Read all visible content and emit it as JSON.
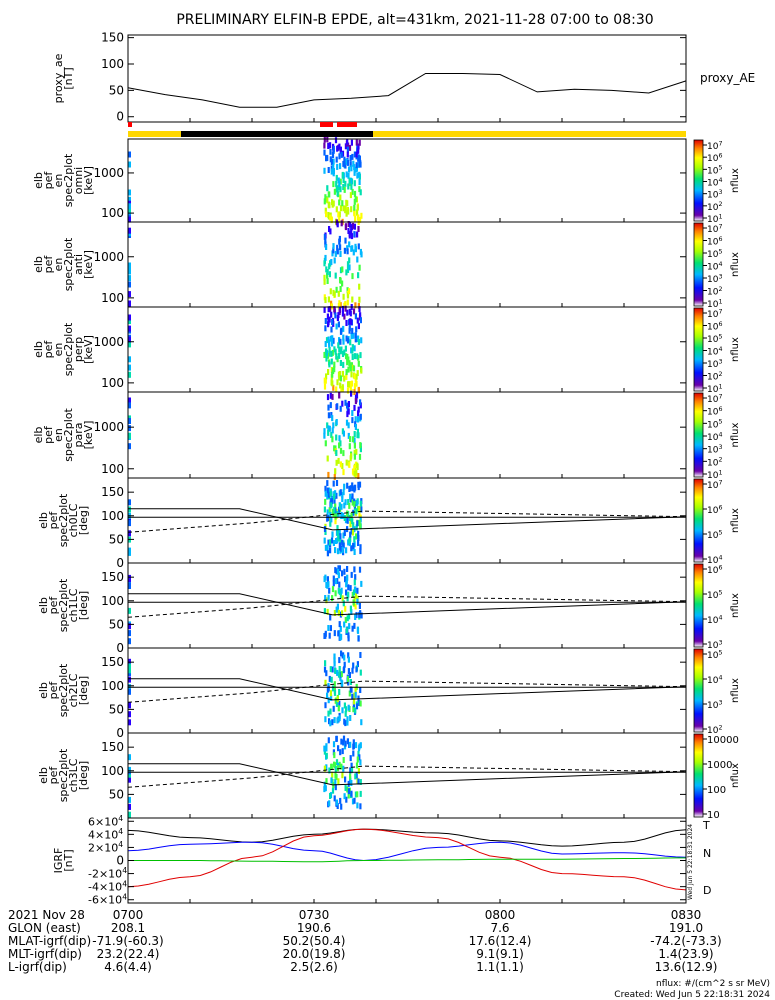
{
  "title": "PRELIMINARY ELFIN-B EPDE, alt=431km, 2021-11-28 07:00 to 08:30",
  "colors": {
    "series_black": "#000000",
    "series_blue": "#0000ff",
    "series_green": "#00c000",
    "series_red": "#e00000",
    "science_bar": "#ffd700",
    "eclipse_bar": "#000000",
    "burst_marker": "#ff0000"
  },
  "chart_data": [
    {
      "id": "proxy_ae",
      "type": "line",
      "ylabel_lines": [
        "proxy_ae",
        "[nT]"
      ],
      "ylim": [
        -10,
        155
      ],
      "yticks": [
        0,
        50,
        100,
        150
      ],
      "legend": [
        "proxy_AE"
      ],
      "x_minutes": [
        0,
        6,
        12,
        18,
        24,
        30,
        36,
        42,
        48,
        54,
        60,
        66,
        72,
        78,
        84,
        90
      ],
      "values": [
        55,
        42,
        32,
        18,
        18,
        32,
        35,
        40,
        82,
        82,
        80,
        47,
        52,
        50,
        45,
        68
      ]
    },
    {
      "id": "en_omni",
      "type": "heatmap",
      "ylabel_lines": [
        "elb",
        "pef",
        "en",
        "spec2plot",
        "omni",
        "[keV]"
      ],
      "y_scale": "log",
      "ylim": [
        60,
        7000
      ],
      "yticks": [
        100,
        1000
      ],
      "colorbar_label": "nflux",
      "colorbar_ticks": [
        "10^1",
        "10^2",
        "10^3",
        "10^4",
        "10^5",
        "10^6",
        "10^7"
      ]
    },
    {
      "id": "en_anti",
      "type": "heatmap",
      "ylabel_lines": [
        "elb",
        "pef",
        "en",
        "spec2plot",
        "anti",
        "[keV]"
      ],
      "y_scale": "log",
      "ylim": [
        60,
        7000
      ],
      "yticks": [
        100,
        1000
      ],
      "colorbar_label": "nflux",
      "colorbar_ticks": [
        "10^1",
        "10^2",
        "10^3",
        "10^4",
        "10^5",
        "10^6",
        "10^7"
      ]
    },
    {
      "id": "en_perp",
      "type": "heatmap",
      "ylabel_lines": [
        "elb",
        "pef",
        "en",
        "spec2plot",
        "perp",
        "[keV]"
      ],
      "y_scale": "log",
      "ylim": [
        60,
        7000
      ],
      "yticks": [
        100,
        1000
      ],
      "colorbar_label": "nflux",
      "colorbar_ticks": [
        "10^1",
        "10^2",
        "10^3",
        "10^4",
        "10^5",
        "10^6",
        "10^7"
      ]
    },
    {
      "id": "en_para",
      "type": "heatmap",
      "ylabel_lines": [
        "elb",
        "pef",
        "en",
        "spec2plot",
        "para",
        "[keV]"
      ],
      "y_scale": "log",
      "ylim": [
        60,
        7000
      ],
      "yticks": [
        100,
        1000
      ],
      "colorbar_label": "nflux",
      "colorbar_ticks": [
        "10^1",
        "10^2",
        "10^3",
        "10^4",
        "10^5",
        "10^6",
        "10^7"
      ]
    },
    {
      "id": "pa_ch0",
      "type": "heatmap",
      "ylabel_lines": [
        "elb",
        "pef",
        "spec2plot",
        "ch0LC",
        "[deg]"
      ],
      "ylim": [
        0,
        180
      ],
      "yticks": [
        0,
        50,
        100,
        150
      ],
      "colorbar_label": "nflux",
      "colorbar_ticks": [
        "10^4",
        "10^5",
        "10^6",
        "10^7"
      ]
    },
    {
      "id": "pa_ch1",
      "type": "heatmap",
      "ylabel_lines": [
        "elb",
        "pef",
        "spec2plot",
        "ch1LC",
        "[deg]"
      ],
      "ylim": [
        0,
        180
      ],
      "yticks": [
        0,
        50,
        100,
        150
      ],
      "colorbar_label": "nflux",
      "colorbar_ticks": [
        "10^3",
        "10^4",
        "10^5",
        "10^6"
      ]
    },
    {
      "id": "pa_ch2",
      "type": "heatmap",
      "ylabel_lines": [
        "elb",
        "pef",
        "spec2plot",
        "ch2LC",
        "[deg]"
      ],
      "ylim": [
        0,
        180
      ],
      "yticks": [
        0,
        50,
        100,
        150
      ],
      "colorbar_label": "nflux",
      "colorbar_ticks": [
        "10^2",
        "10^3",
        "10^4",
        "10^5"
      ]
    },
    {
      "id": "pa_ch3",
      "type": "heatmap",
      "ylabel_lines": [
        "elb",
        "pef",
        "spec2plot",
        "ch3LC",
        "[deg]"
      ],
      "ylim": [
        0,
        180
      ],
      "yticks": [
        50,
        100,
        150
      ],
      "colorbar_label": "nflux",
      "colorbar_ticks": [
        "10",
        "100",
        "1000",
        "10000"
      ]
    },
    {
      "id": "igrf",
      "type": "line",
      "ylabel_lines": [
        "IGRF",
        "[nT]"
      ],
      "ylim": [
        -65000,
        65000
      ],
      "yticks": [
        "-6×10^4",
        "-4×10^4",
        "-2×10^4",
        "0",
        "2×10^4",
        "4×10^4",
        "6×10^4"
      ],
      "legend": [
        "T",
        "N",
        "D"
      ],
      "x_minutes": [
        0,
        10,
        20,
        30,
        38,
        50,
        60,
        70,
        80,
        90
      ],
      "series": [
        {
          "name": "T",
          "values": [
            46000,
            35000,
            28000,
            40000,
            48000,
            42000,
            30000,
            22000,
            28000,
            47000
          ]
        },
        {
          "name": "N",
          "values": [
            15000,
            25000,
            28000,
            15000,
            0,
            20000,
            28000,
            10000,
            12000,
            5000
          ]
        },
        {
          "name": "D",
          "values": [
            -40000,
            -25000,
            5000,
            38000,
            48000,
            35000,
            5000,
            -20000,
            -25000,
            -45000
          ]
        },
        {
          "name": "green",
          "values": [
            0,
            0,
            -1000,
            -2000,
            0,
            1000,
            2000,
            2000,
            3000,
            4000
          ]
        }
      ]
    }
  ],
  "x_axis": {
    "tick_labels": [
      "0700",
      "0730",
      "0800",
      "0830"
    ],
    "annotation_rows": [
      {
        "label": "2021 Nov 28",
        "values": [
          "0700",
          "0730",
          "0800",
          "0830"
        ]
      },
      {
        "label": "GLON (east)",
        "values": [
          "208.1",
          "190.6",
          "7.6",
          "191.0"
        ]
      },
      {
        "label": "MLAT-igrf(dip)",
        "values": [
          "-71.9(-60.3)",
          "50.2(50.4)",
          "17.6(12.4)",
          "-74.2(-73.3)"
        ]
      },
      {
        "label": "MLT-igrf(dip)",
        "values": [
          "23.2(22.4)",
          "20.0(19.8)",
          "9.1(9.1)",
          "1.4(23.9)"
        ]
      },
      {
        "label": "L-igrf(dip)",
        "values": [
          "4.6(4.4)",
          "2.5(2.6)",
          "1.1(1.1)",
          "13.6(12.9)"
        ]
      }
    ]
  },
  "footer": {
    "units": "nflux: #/(cm^2 s sr MeV)",
    "created": "Created: Wed Jun  5 22:18:31 2024",
    "side_stamp": "Wed Jun  5 22:18:31 2024"
  }
}
